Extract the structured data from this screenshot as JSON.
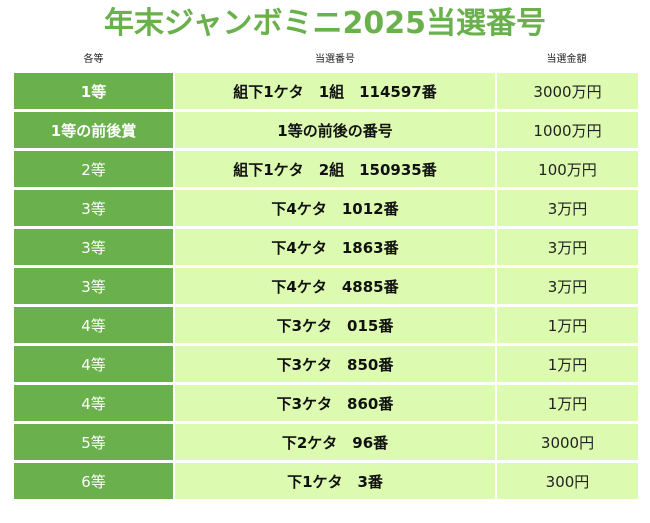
{
  "title": "年末ジャンボミニ2025当選番号",
  "headers": {
    "rank": "各等",
    "number": "当選番号",
    "amount": "当選金額"
  },
  "accent_color": "#6ab04c",
  "cell_color": "#dcfab0",
  "rows": [
    {
      "rank": "1等",
      "number": "組下1ケタ　1組　114597番",
      "amount": "3000万円",
      "bold_rank": true
    },
    {
      "rank": "1等の前後賞",
      "number": "1等の前後の番号",
      "amount": "1000万円",
      "bold_rank": true
    },
    {
      "rank": "2等",
      "number": "組下1ケタ　2組　150935番",
      "amount": "100万円",
      "bold_rank": false
    },
    {
      "rank": "3等",
      "number": "下4ケタ　1012番",
      "amount": "3万円",
      "bold_rank": false
    },
    {
      "rank": "3等",
      "number": "下4ケタ　1863番",
      "amount": "3万円",
      "bold_rank": false
    },
    {
      "rank": "3等",
      "number": "下4ケタ　4885番",
      "amount": "3万円",
      "bold_rank": false
    },
    {
      "rank": "4等",
      "number": "下3ケタ　015番",
      "amount": "1万円",
      "bold_rank": false
    },
    {
      "rank": "4等",
      "number": "下3ケタ　850番",
      "amount": "1万円",
      "bold_rank": false
    },
    {
      "rank": "4等",
      "number": "下3ケタ　860番",
      "amount": "1万円",
      "bold_rank": false
    },
    {
      "rank": "5等",
      "number": "下2ケタ　96番",
      "amount": "3000円",
      "bold_rank": false
    },
    {
      "rank": "6等",
      "number": "下1ケタ　3番",
      "amount": "300円",
      "bold_rank": false
    }
  ]
}
